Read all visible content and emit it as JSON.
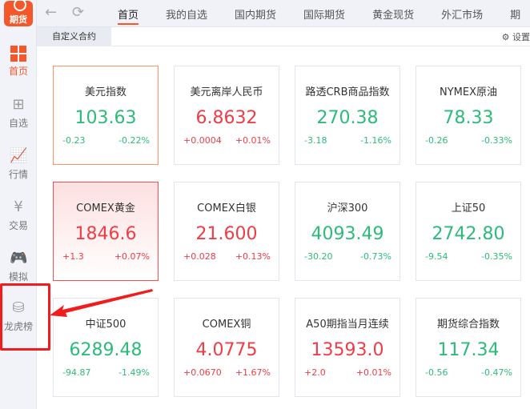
{
  "app": {
    "logo_text": "期货"
  },
  "sidebar": {
    "items": [
      {
        "label": "首页",
        "icon": "grid-icon",
        "active": true
      },
      {
        "label": "自选",
        "icon": "clipboard-plus-icon"
      },
      {
        "label": "行情",
        "icon": "chart-icon"
      },
      {
        "label": "交易",
        "icon": "yen-cycle-icon"
      },
      {
        "label": "模拟",
        "icon": "gamepad-icon"
      },
      {
        "label": "龙虎榜",
        "icon": "database-icon",
        "highlighted": true
      }
    ]
  },
  "toolbar": {
    "back_icon": "←",
    "refresh_icon": "⟳"
  },
  "tabs": [
    "首页",
    "我的自选",
    "国内期货",
    "国际期货",
    "黄金现货",
    "外汇市场",
    "期"
  ],
  "subbar": {
    "tab": "自定义合约",
    "settings": "设置"
  },
  "colors": {
    "accent": "#f4582a",
    "up": "#f03c47",
    "down": "#2dba7a",
    "highlight": "#f21c1c"
  },
  "cards": [
    {
      "name": "美元指数",
      "price": "103.63",
      "change": "-0.23",
      "pct": "-0.22%",
      "dir": "down",
      "state": "selected"
    },
    {
      "name": "美元离岸人民币",
      "price": "6.8632",
      "change": "+0.0004",
      "pct": "+0.01%",
      "dir": "up"
    },
    {
      "name": "路透CRB商品指数",
      "price": "270.38",
      "change": "-3.18",
      "pct": "-1.16%",
      "dir": "down"
    },
    {
      "name": "NYMEX原油",
      "price": "78.33",
      "change": "-0.26",
      "pct": "-0.33%",
      "dir": "down"
    },
    {
      "name": "COMEX黄金",
      "price": "1846.6",
      "change": "+1.3",
      "pct": "+0.07%",
      "dir": "up",
      "state": "flash"
    },
    {
      "name": "COMEX白银",
      "price": "21.600",
      "change": "+0.028",
      "pct": "+0.13%",
      "dir": "up"
    },
    {
      "name": "沪深300",
      "price": "4093.49",
      "change": "-30.20",
      "pct": "-0.73%",
      "dir": "down"
    },
    {
      "name": "上证50",
      "price": "2742.80",
      "change": "-9.54",
      "pct": "-0.35%",
      "dir": "down"
    },
    {
      "name": "中证500",
      "price": "6289.48",
      "change": "-94.87",
      "pct": "-1.49%",
      "dir": "down"
    },
    {
      "name": "COMEX铜",
      "price": "4.0775",
      "change": "+0.0670",
      "pct": "+1.67%",
      "dir": "up"
    },
    {
      "name": "A50期指当月连续",
      "price": "13593.0",
      "change": "+2.0",
      "pct": "+0.01%",
      "dir": "up"
    },
    {
      "name": "期货综合指数",
      "price": "117.34",
      "change": "-0.56",
      "pct": "-0.47%",
      "dir": "down"
    }
  ]
}
